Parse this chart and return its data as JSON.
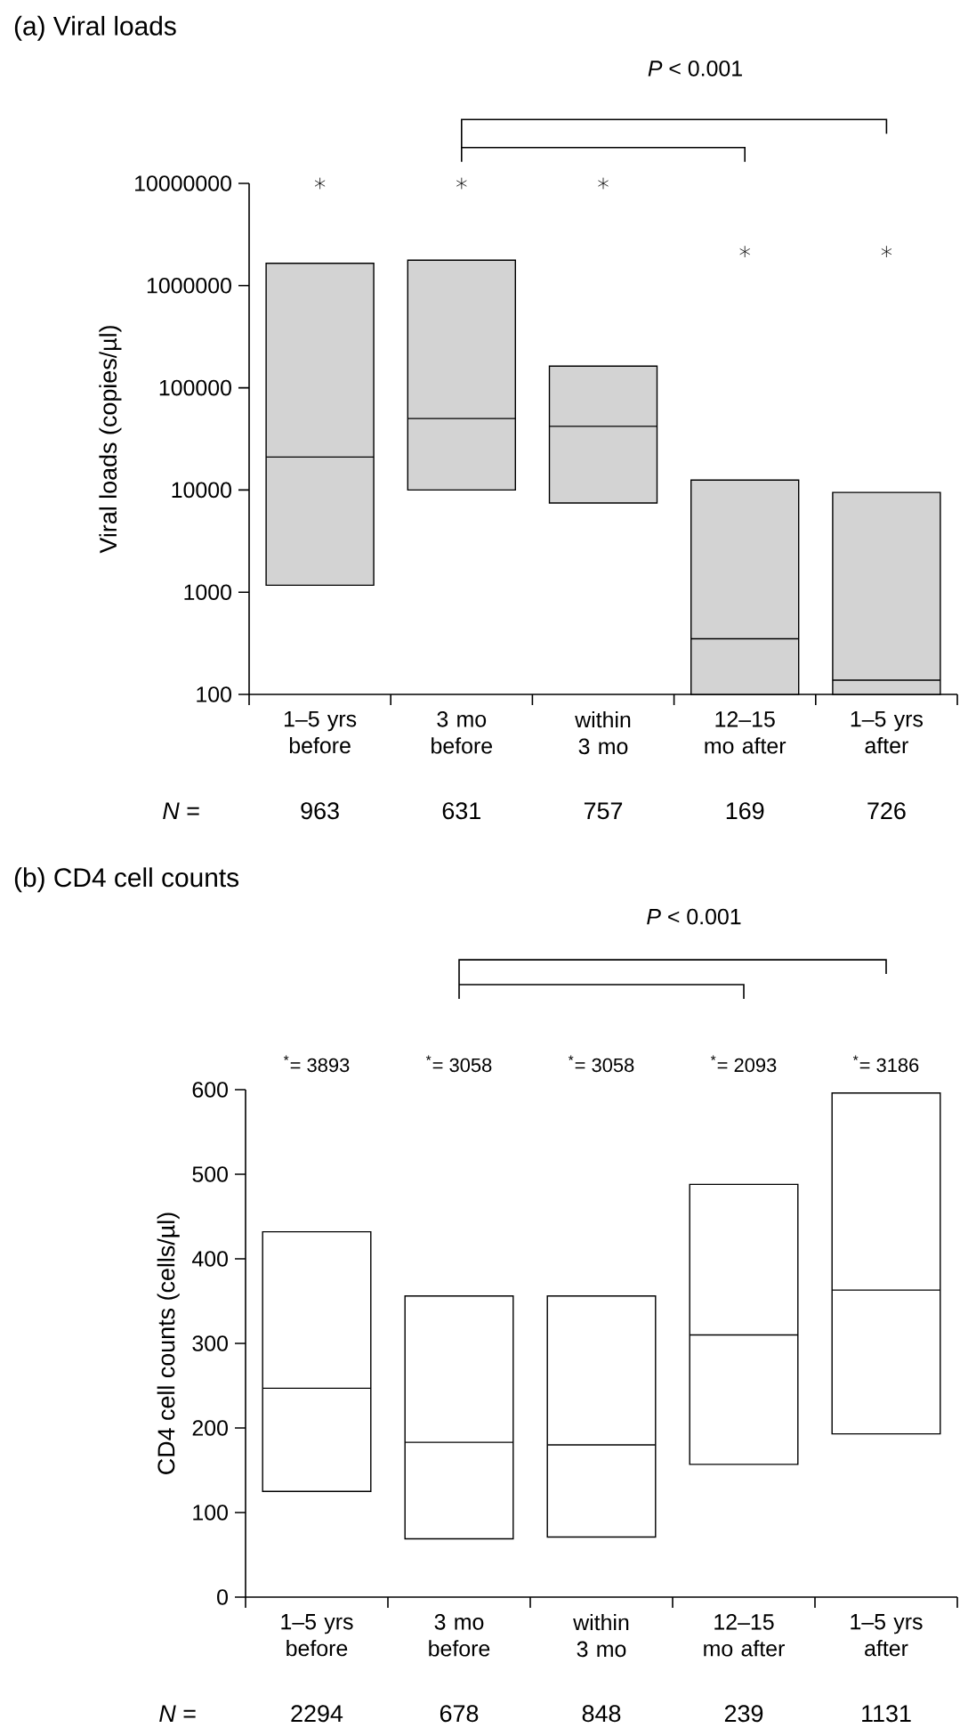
{
  "chart_data": [
    {
      "type": "box",
      "title": "(a) Viral loads",
      "ylabel": "Viral loads (copies/µl)",
      "log": true,
      "color": "#d3d3d3",
      "categories": [
        "1–5 yrs before",
        "3 mo before",
        "within 3 mo",
        "12–15 mo after",
        "1–5 yrs after"
      ],
      "boxes": [
        {
          "q1": 1170,
          "median": 21000,
          "q3": 1650000
        },
        {
          "q1": 10000,
          "median": 50000,
          "q3": 1770000
        },
        {
          "q1": 7460,
          "median": 42000,
          "q3": 163000
        },
        {
          "q1": 100,
          "median": 350,
          "q3": 12500
        },
        {
          "q1": 100,
          "median": 138,
          "q3": 9460
        }
      ],
      "series": [
        {
          "type": "scatter",
          "marker": "cross",
          "color": "#000000",
          "values": [
            10000000,
            10000000,
            10000000,
            2150000,
            2150000
          ]
        }
      ],
      "ylim": [
        100,
        10000000
      ],
      "yticks": [
        100,
        1000,
        10000,
        100000,
        1000000,
        10000000
      ],
      "annotations": [
        "*P* < 0.001",
        "*N* =",
        "963",
        "631",
        "757",
        "169",
        "726"
      ]
    },
    {
      "type": "box",
      "title": "(b) CD4 cell counts",
      "ylabel": "CD4 cell counts (cells/µl)",
      "color": "#ffffff",
      "categories": [
        "1–5 yrs before",
        "3 mo before",
        "within 3 mo",
        "12–15 mo after",
        "1–5 yrs after"
      ],
      "boxes": [
        {
          "q1": 125,
          "median": 247,
          "q3": 432
        },
        {
          "q1": 69,
          "median": 183,
          "q3": 356
        },
        {
          "q1": 71,
          "median": 180,
          "q3": 356
        },
        {
          "q1": 157,
          "median": 310,
          "q3": 488
        },
        {
          "q1": 193,
          "median": 363,
          "q3": 596
        }
      ],
      "ylim": [
        0,
        600
      ],
      "yticks": [
        0,
        100,
        200,
        300,
        400,
        500,
        600
      ],
      "annotations": [
        "*P* < 0.001",
        "*N* =",
        "2294",
        "678",
        "848",
        "239",
        "1131",
        "$^{*}$= 3893",
        "$^{*}$= 3058",
        "$^{*}$= 3058",
        "$^{*}$= 2093",
        "$^{*}$= 3186"
      ]
    }
  ]
}
